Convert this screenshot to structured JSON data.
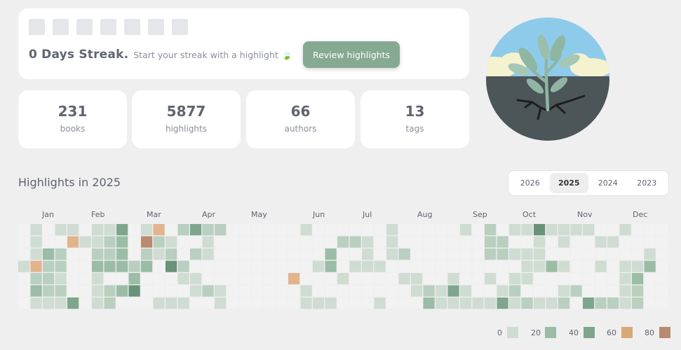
{
  "streak": {
    "day_count": 7,
    "title": "0 Days Streak.",
    "subtitle": "Start your streak with a highlight",
    "review_label": "Review highlights"
  },
  "stats": [
    {
      "value": "231",
      "label": "books"
    },
    {
      "value": "5877",
      "label": "highlights"
    },
    {
      "value": "66",
      "label": "authors"
    },
    {
      "value": "13",
      "label": "tags"
    }
  ],
  "heatmap_title": "Highlights in 2025",
  "years": [
    "2026",
    "2025",
    "2024",
    "2023"
  ],
  "selected_year": "2025",
  "months": [
    "Jan",
    "Feb",
    "Mar",
    "Apr",
    "May",
    "Jun",
    "Jul",
    "Aug",
    "Sep",
    "Oct",
    "Nov",
    "Dec"
  ],
  "legend": [
    {
      "label": "0",
      "color": "#cfdcd2"
    },
    {
      "label": "20",
      "color": "#9bbca6"
    },
    {
      "label": "40",
      "color": "#7ea68c"
    },
    {
      "label": "60",
      "color": "#d8a877"
    },
    {
      "label": "80",
      "color": "#b88a70"
    }
  ],
  "colors": {
    "empty": "#f2f2f2",
    "level1": "#cfdcd2",
    "level2": "#b9cfbf",
    "level3": "#9bbca6",
    "level4": "#7ea68c",
    "level5": "#6a917a",
    "orange": "#e2b48e",
    "brown": "#b88a70",
    "accent": "#86a992"
  },
  "heatmap": {
    "weeks": 53,
    "cells": [
      [
        0,
        1,
        0,
        1,
        1,
        0,
        1,
        1,
        4,
        0,
        1,
        6,
        0,
        2,
        4,
        2,
        2,
        0,
        0,
        0,
        0,
        0,
        0,
        1,
        0,
        0,
        0,
        0,
        0,
        0,
        1,
        0,
        0,
        0,
        0,
        0,
        1,
        0,
        2,
        0,
        1,
        1,
        5,
        1,
        1,
        1,
        1,
        0,
        0,
        1,
        0,
        0,
        0
      ],
      [
        0,
        1,
        0,
        0,
        6,
        1,
        1,
        2,
        3,
        0,
        7,
        2,
        1,
        0,
        0,
        1,
        0,
        0,
        0,
        0,
        0,
        0,
        0,
        0,
        0,
        0,
        2,
        2,
        1,
        0,
        1,
        0,
        0,
        0,
        0,
        0,
        0,
        0,
        2,
        2,
        0,
        0,
        1,
        0,
        1,
        0,
        0,
        1,
        1,
        0,
        0,
        0,
        0
      ],
      [
        0,
        1,
        3,
        2,
        0,
        0,
        2,
        2,
        3,
        0,
        2,
        1,
        2,
        0,
        2,
        1,
        0,
        0,
        0,
        0,
        0,
        0,
        0,
        0,
        0,
        3,
        0,
        0,
        1,
        0,
        1,
        2,
        0,
        0,
        0,
        0,
        0,
        0,
        2,
        2,
        1,
        1,
        1,
        0,
        0,
        0,
        0,
        0,
        0,
        0,
        0,
        1,
        0
      ],
      [
        1,
        6,
        2,
        2,
        0,
        0,
        3,
        3,
        3,
        2,
        3,
        0,
        5,
        2,
        0,
        0,
        0,
        0,
        0,
        0,
        0,
        0,
        0,
        0,
        1,
        3,
        0,
        1,
        1,
        1,
        0,
        0,
        0,
        0,
        0,
        0,
        0,
        0,
        0,
        0,
        0,
        1,
        1,
        3,
        1,
        0,
        0,
        1,
        0,
        1,
        1,
        3,
        0
      ],
      [
        0,
        2,
        2,
        1,
        0,
        0,
        1,
        0,
        0,
        3,
        0,
        0,
        0,
        1,
        1,
        0,
        0,
        0,
        0,
        0,
        0,
        0,
        6,
        0,
        0,
        0,
        1,
        0,
        0,
        0,
        0,
        1,
        1,
        0,
        0,
        1,
        0,
        0,
        1,
        0,
        1,
        1,
        0,
        0,
        0,
        0,
        0,
        0,
        0,
        1,
        3,
        0,
        0
      ],
      [
        0,
        3,
        2,
        2,
        0,
        0,
        1,
        2,
        3,
        5,
        0,
        0,
        0,
        0,
        1,
        2,
        1,
        0,
        0,
        0,
        0,
        0,
        0,
        1,
        0,
        0,
        0,
        0,
        0,
        0,
        0,
        0,
        1,
        2,
        1,
        4,
        1,
        0,
        0,
        1,
        2,
        0,
        0,
        0,
        1,
        2,
        0,
        0,
        0,
        1,
        2,
        0,
        0
      ],
      [
        0,
        1,
        1,
        1,
        4,
        0,
        1,
        2,
        0,
        0,
        0,
        1,
        1,
        1,
        0,
        0,
        1,
        0,
        0,
        0,
        0,
        0,
        0,
        1,
        1,
        1,
        0,
        0,
        0,
        1,
        0,
        0,
        0,
        3,
        1,
        1,
        1,
        1,
        1,
        4,
        1,
        2,
        1,
        1,
        2,
        0,
        4,
        2,
        2,
        1,
        2,
        0,
        0
      ]
    ]
  }
}
